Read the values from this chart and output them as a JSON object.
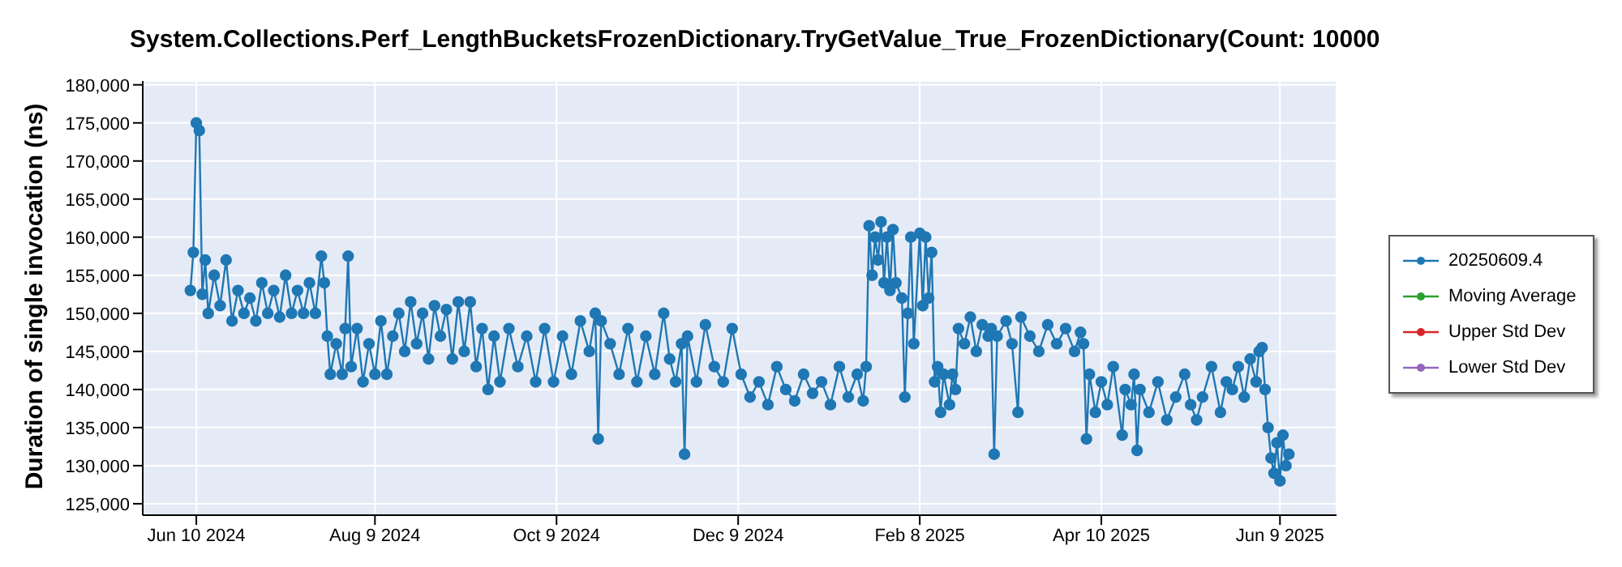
{
  "chart_data": {
    "type": "line",
    "title": "System.Collections.Perf_LengthBucketsFrozenDictionary.TryGetValue_True_FrozenDictionary(Count: 10000",
    "ylabel": "Duration of single invocation (ns)",
    "xlim": [
      "2024-05-23",
      "2025-06-28"
    ],
    "xticks": [
      {
        "value": "2024-06-10",
        "label": "Jun 10 2024"
      },
      {
        "value": "2024-08-09",
        "label": "Aug 9 2024"
      },
      {
        "value": "2024-10-09",
        "label": "Oct 9 2024"
      },
      {
        "value": "2024-12-09",
        "label": "Dec 9 2024"
      },
      {
        "value": "2025-02-08",
        "label": "Feb 8 2025"
      },
      {
        "value": "2025-04-10",
        "label": "Apr 10 2025"
      },
      {
        "value": "2025-06-09",
        "label": "Jun 9 2025"
      }
    ],
    "ylim": [
      123500,
      180500
    ],
    "yticks": [
      {
        "value": 125000,
        "label": "125,000"
      },
      {
        "value": 130000,
        "label": "130,000"
      },
      {
        "value": 135000,
        "label": "135,000"
      },
      {
        "value": 140000,
        "label": "140,000"
      },
      {
        "value": 145000,
        "label": "145,000"
      },
      {
        "value": 150000,
        "label": "150,000"
      },
      {
        "value": 155000,
        "label": "155,000"
      },
      {
        "value": 160000,
        "label": "160,000"
      },
      {
        "value": 165000,
        "label": "165,000"
      },
      {
        "value": 170000,
        "label": "170,000"
      },
      {
        "value": 175000,
        "label": "175,000"
      },
      {
        "value": 180000,
        "label": "180,000"
      }
    ],
    "grid": true,
    "legend": "right",
    "marker": "circle",
    "line_style": "solid",
    "series": [
      {
        "name": "20250609.4",
        "color": "#1f77b4",
        "x": [
          "2024-06-08",
          "2024-06-09",
          "2024-06-10",
          "2024-06-11",
          "2024-06-12",
          "2024-06-13",
          "2024-06-14",
          "2024-06-16",
          "2024-06-18",
          "2024-06-20",
          "2024-06-22",
          "2024-06-24",
          "2024-06-26",
          "2024-06-28",
          "2024-06-30",
          "2024-07-02",
          "2024-07-04",
          "2024-07-06",
          "2024-07-08",
          "2024-07-10",
          "2024-07-12",
          "2024-07-14",
          "2024-07-16",
          "2024-07-18",
          "2024-07-20",
          "2024-07-22",
          "2024-07-23",
          "2024-07-24",
          "2024-07-25",
          "2024-07-27",
          "2024-07-29",
          "2024-07-30",
          "2024-07-31",
          "2024-08-01",
          "2024-08-03",
          "2024-08-05",
          "2024-08-07",
          "2024-08-09",
          "2024-08-11",
          "2024-08-13",
          "2024-08-15",
          "2024-08-17",
          "2024-08-19",
          "2024-08-21",
          "2024-08-23",
          "2024-08-25",
          "2024-08-27",
          "2024-08-29",
          "2024-08-31",
          "2024-09-02",
          "2024-09-04",
          "2024-09-06",
          "2024-09-08",
          "2024-09-10",
          "2024-09-12",
          "2024-09-14",
          "2024-09-16",
          "2024-09-18",
          "2024-09-20",
          "2024-09-23",
          "2024-09-26",
          "2024-09-29",
          "2024-10-02",
          "2024-10-05",
          "2024-10-08",
          "2024-10-11",
          "2024-10-14",
          "2024-10-17",
          "2024-10-20",
          "2024-10-22",
          "2024-10-23",
          "2024-10-24",
          "2024-10-27",
          "2024-10-30",
          "2024-11-02",
          "2024-11-05",
          "2024-11-08",
          "2024-11-11",
          "2024-11-14",
          "2024-11-16",
          "2024-11-18",
          "2024-11-20",
          "2024-11-21",
          "2024-11-22",
          "2024-11-25",
          "2024-11-28",
          "2024-12-01",
          "2024-12-04",
          "2024-12-07",
          "2024-12-10",
          "2024-12-13",
          "2024-12-16",
          "2024-12-19",
          "2024-12-22",
          "2024-12-25",
          "2024-12-28",
          "2024-12-31",
          "2025-01-03",
          "2025-01-06",
          "2025-01-09",
          "2025-01-12",
          "2025-01-15",
          "2025-01-18",
          "2025-01-20",
          "2025-01-21",
          "2025-01-22",
          "2025-01-23",
          "2025-01-24",
          "2025-01-25",
          "2025-01-26",
          "2025-01-27",
          "2025-01-28",
          "2025-01-29",
          "2025-01-30",
          "2025-01-31",
          "2025-02-02",
          "2025-02-03",
          "2025-02-04",
          "2025-02-05",
          "2025-02-06",
          "2025-02-08",
          "2025-02-09",
          "2025-02-10",
          "2025-02-11",
          "2025-02-12",
          "2025-02-13",
          "2025-02-14",
          "2025-02-15",
          "2025-02-16",
          "2025-02-18",
          "2025-02-19",
          "2025-02-20",
          "2025-02-21",
          "2025-02-23",
          "2025-02-25",
          "2025-02-27",
          "2025-03-01",
          "2025-03-03",
          "2025-03-04",
          "2025-03-05",
          "2025-03-06",
          "2025-03-09",
          "2025-03-11",
          "2025-03-13",
          "2025-03-14",
          "2025-03-17",
          "2025-03-20",
          "2025-03-23",
          "2025-03-26",
          "2025-03-29",
          "2025-04-01",
          "2025-04-03",
          "2025-04-04",
          "2025-04-05",
          "2025-04-06",
          "2025-04-08",
          "2025-04-10",
          "2025-04-12",
          "2025-04-14",
          "2025-04-17",
          "2025-04-18",
          "2025-04-20",
          "2025-04-21",
          "2025-04-22",
          "2025-04-23",
          "2025-04-26",
          "2025-04-29",
          "2025-05-02",
          "2025-05-05",
          "2025-05-08",
          "2025-05-10",
          "2025-05-12",
          "2025-05-14",
          "2025-05-17",
          "2025-05-20",
          "2025-05-22",
          "2025-05-24",
          "2025-05-26",
          "2025-05-28",
          "2025-05-30",
          "2025-06-01",
          "2025-06-02",
          "2025-06-03",
          "2025-06-04",
          "2025-06-05",
          "2025-06-06",
          "2025-06-07",
          "2025-06-08",
          "2025-06-09",
          "2025-06-10",
          "2025-06-11",
          "2025-06-12"
        ],
        "values": [
          153000,
          158000,
          175000,
          174000,
          152500,
          157000,
          150000,
          155000,
          151000,
          157000,
          149000,
          153000,
          150000,
          152000,
          149000,
          154000,
          150000,
          153000,
          149500,
          155000,
          150000,
          153000,
          150000,
          154000,
          150000,
          157500,
          154000,
          147000,
          142000,
          146000,
          142000,
          148000,
          157500,
          143000,
          148000,
          141000,
          146000,
          142000,
          149000,
          142000,
          147000,
          150000,
          145000,
          151500,
          146000,
          150000,
          144000,
          151000,
          147000,
          150500,
          144000,
          151500,
          145000,
          151500,
          143000,
          148000,
          140000,
          147000,
          141000,
          148000,
          143000,
          147000,
          141000,
          148000,
          141000,
          147000,
          142000,
          149000,
          145000,
          150000,
          133500,
          149000,
          146000,
          142000,
          148000,
          141000,
          147000,
          142000,
          150000,
          144000,
          141000,
          146000,
          131500,
          147000,
          141000,
          148500,
          143000,
          141000,
          148000,
          142000,
          139000,
          141000,
          138000,
          143000,
          140000,
          138500,
          142000,
          139500,
          141000,
          138000,
          143000,
          139000,
          142000,
          138500,
          143000,
          161500,
          155000,
          160000,
          157000,
          162000,
          154000,
          160000,
          153000,
          161000,
          154000,
          152000,
          139000,
          150000,
          160000,
          146000,
          160500,
          151000,
          160000,
          152000,
          158000,
          141000,
          143000,
          137000,
          142000,
          138000,
          142000,
          140000,
          148000,
          146000,
          149500,
          145000,
          148500,
          147000,
          148000,
          131500,
          147000,
          149000,
          146000,
          137000,
          149500,
          147000,
          145000,
          148500,
          146000,
          148000,
          145000,
          147500,
          146000,
          133500,
          142000,
          137000,
          141000,
          138000,
          143000,
          134000,
          140000,
          138000,
          142000,
          132000,
          140000,
          137000,
          141000,
          136000,
          139000,
          142000,
          138000,
          136000,
          139000,
          143000,
          137000,
          141000,
          140000,
          143000,
          139000,
          144000,
          141000,
          145000,
          145500,
          140000,
          135000,
          131000,
          129000,
          133000,
          128000,
          134000,
          130000,
          131500
        ]
      },
      {
        "name": "Moving Average",
        "color": "#2ca02c"
      },
      {
        "name": "Upper Std Dev",
        "color": "#d62728"
      },
      {
        "name": "Lower Std Dev",
        "color": "#9467bd"
      }
    ]
  }
}
